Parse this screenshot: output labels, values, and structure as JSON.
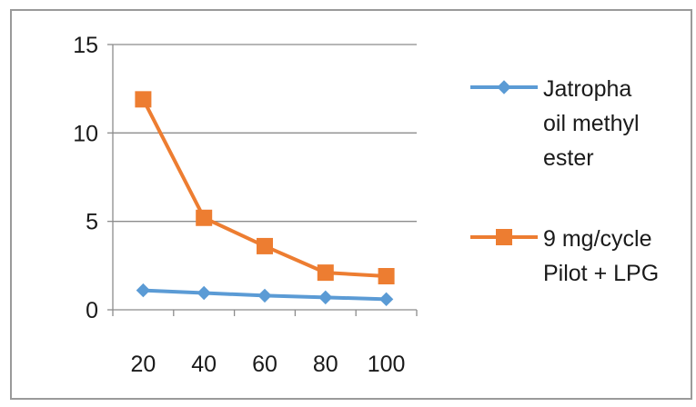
{
  "chart_data": {
    "type": "line",
    "categories": [
      "20",
      "40",
      "60",
      "80",
      "100"
    ],
    "ylim": [
      0,
      15
    ],
    "yticks": [
      "0",
      "5",
      "10",
      "15"
    ],
    "grid": true,
    "legend_position": "right",
    "series": [
      {
        "name_lines": [
          "Jatropha",
          "oil methyl",
          "ester"
        ],
        "color": "#5b9bd5",
        "marker": "diamond",
        "values": [
          1.1,
          0.95,
          0.8,
          0.7,
          0.6
        ]
      },
      {
        "name_lines": [
          "9 mg/cycle",
          "Pilot + LPG"
        ],
        "color": "#ed7d31",
        "marker": "square",
        "values": [
          11.9,
          5.2,
          3.6,
          2.1,
          1.9
        ]
      }
    ]
  }
}
